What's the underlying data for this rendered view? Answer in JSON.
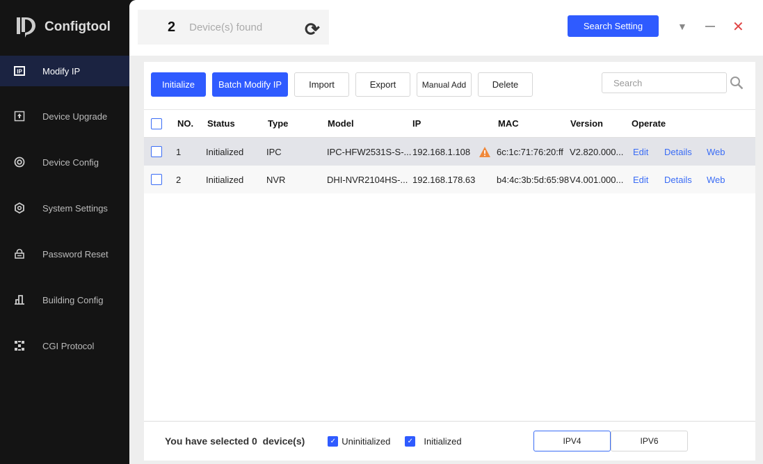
{
  "app": {
    "title": "Configtool"
  },
  "sidebar": {
    "items": [
      {
        "label": "Modify IP",
        "icon": "ip-icon",
        "active": true
      },
      {
        "label": "Device Upgrade",
        "icon": "upgrade-icon"
      },
      {
        "label": "Device Config",
        "icon": "config-icon"
      },
      {
        "label": "System Settings",
        "icon": "settings-icon"
      },
      {
        "label": "Password Reset",
        "icon": "lock-icon"
      },
      {
        "label": "Building Config",
        "icon": "building-icon"
      },
      {
        "label": "CGI Protocol",
        "icon": "grid-icon"
      }
    ]
  },
  "header": {
    "count": "2",
    "found_label": "Device(s) found",
    "search_setting": "Search Setting"
  },
  "toolbar": {
    "initialize": "Initialize",
    "batch_modify": "Batch Modify IP",
    "import": "Import",
    "export": "Export",
    "manual_add": "Manual Add",
    "delete": "Delete",
    "search_placeholder": "Search"
  },
  "table": {
    "columns": [
      "NO.",
      "Status",
      "Type",
      "Model",
      "IP",
      "MAC",
      "Version",
      "Operate"
    ],
    "rows": [
      {
        "no": "1",
        "status": "Initialized",
        "type": "IPC",
        "model": "IPC-HFW2531S-S-...",
        "ip": "192.168.1.108",
        "warning": true,
        "mac": "6c:1c:71:76:20:ff",
        "version": "V2.820.000...",
        "edit": "Edit",
        "details": "Details",
        "web": "Web"
      },
      {
        "no": "2",
        "status": "Initialized",
        "type": "NVR",
        "model": "DHI-NVR2104HS-...",
        "ip": "192.168.178.63",
        "warning": false,
        "mac": "b4:4c:3b:5d:65:98",
        "version": "V4.001.000...",
        "edit": "Edit",
        "details": "Details",
        "web": "Web"
      }
    ]
  },
  "footer": {
    "selected_text": "You have selected 0  device(s)",
    "uninitialized": "Uninitialized",
    "uninitialized_checked": true,
    "initialized": "Initialized",
    "initialized_checked": true,
    "ipv4": "IPV4",
    "ipv6": "IPV6",
    "selected_ip": "IPV4"
  },
  "colors": {
    "accent": "#2f5bff",
    "sidebar": "#141414",
    "warning": "#f0883a"
  }
}
